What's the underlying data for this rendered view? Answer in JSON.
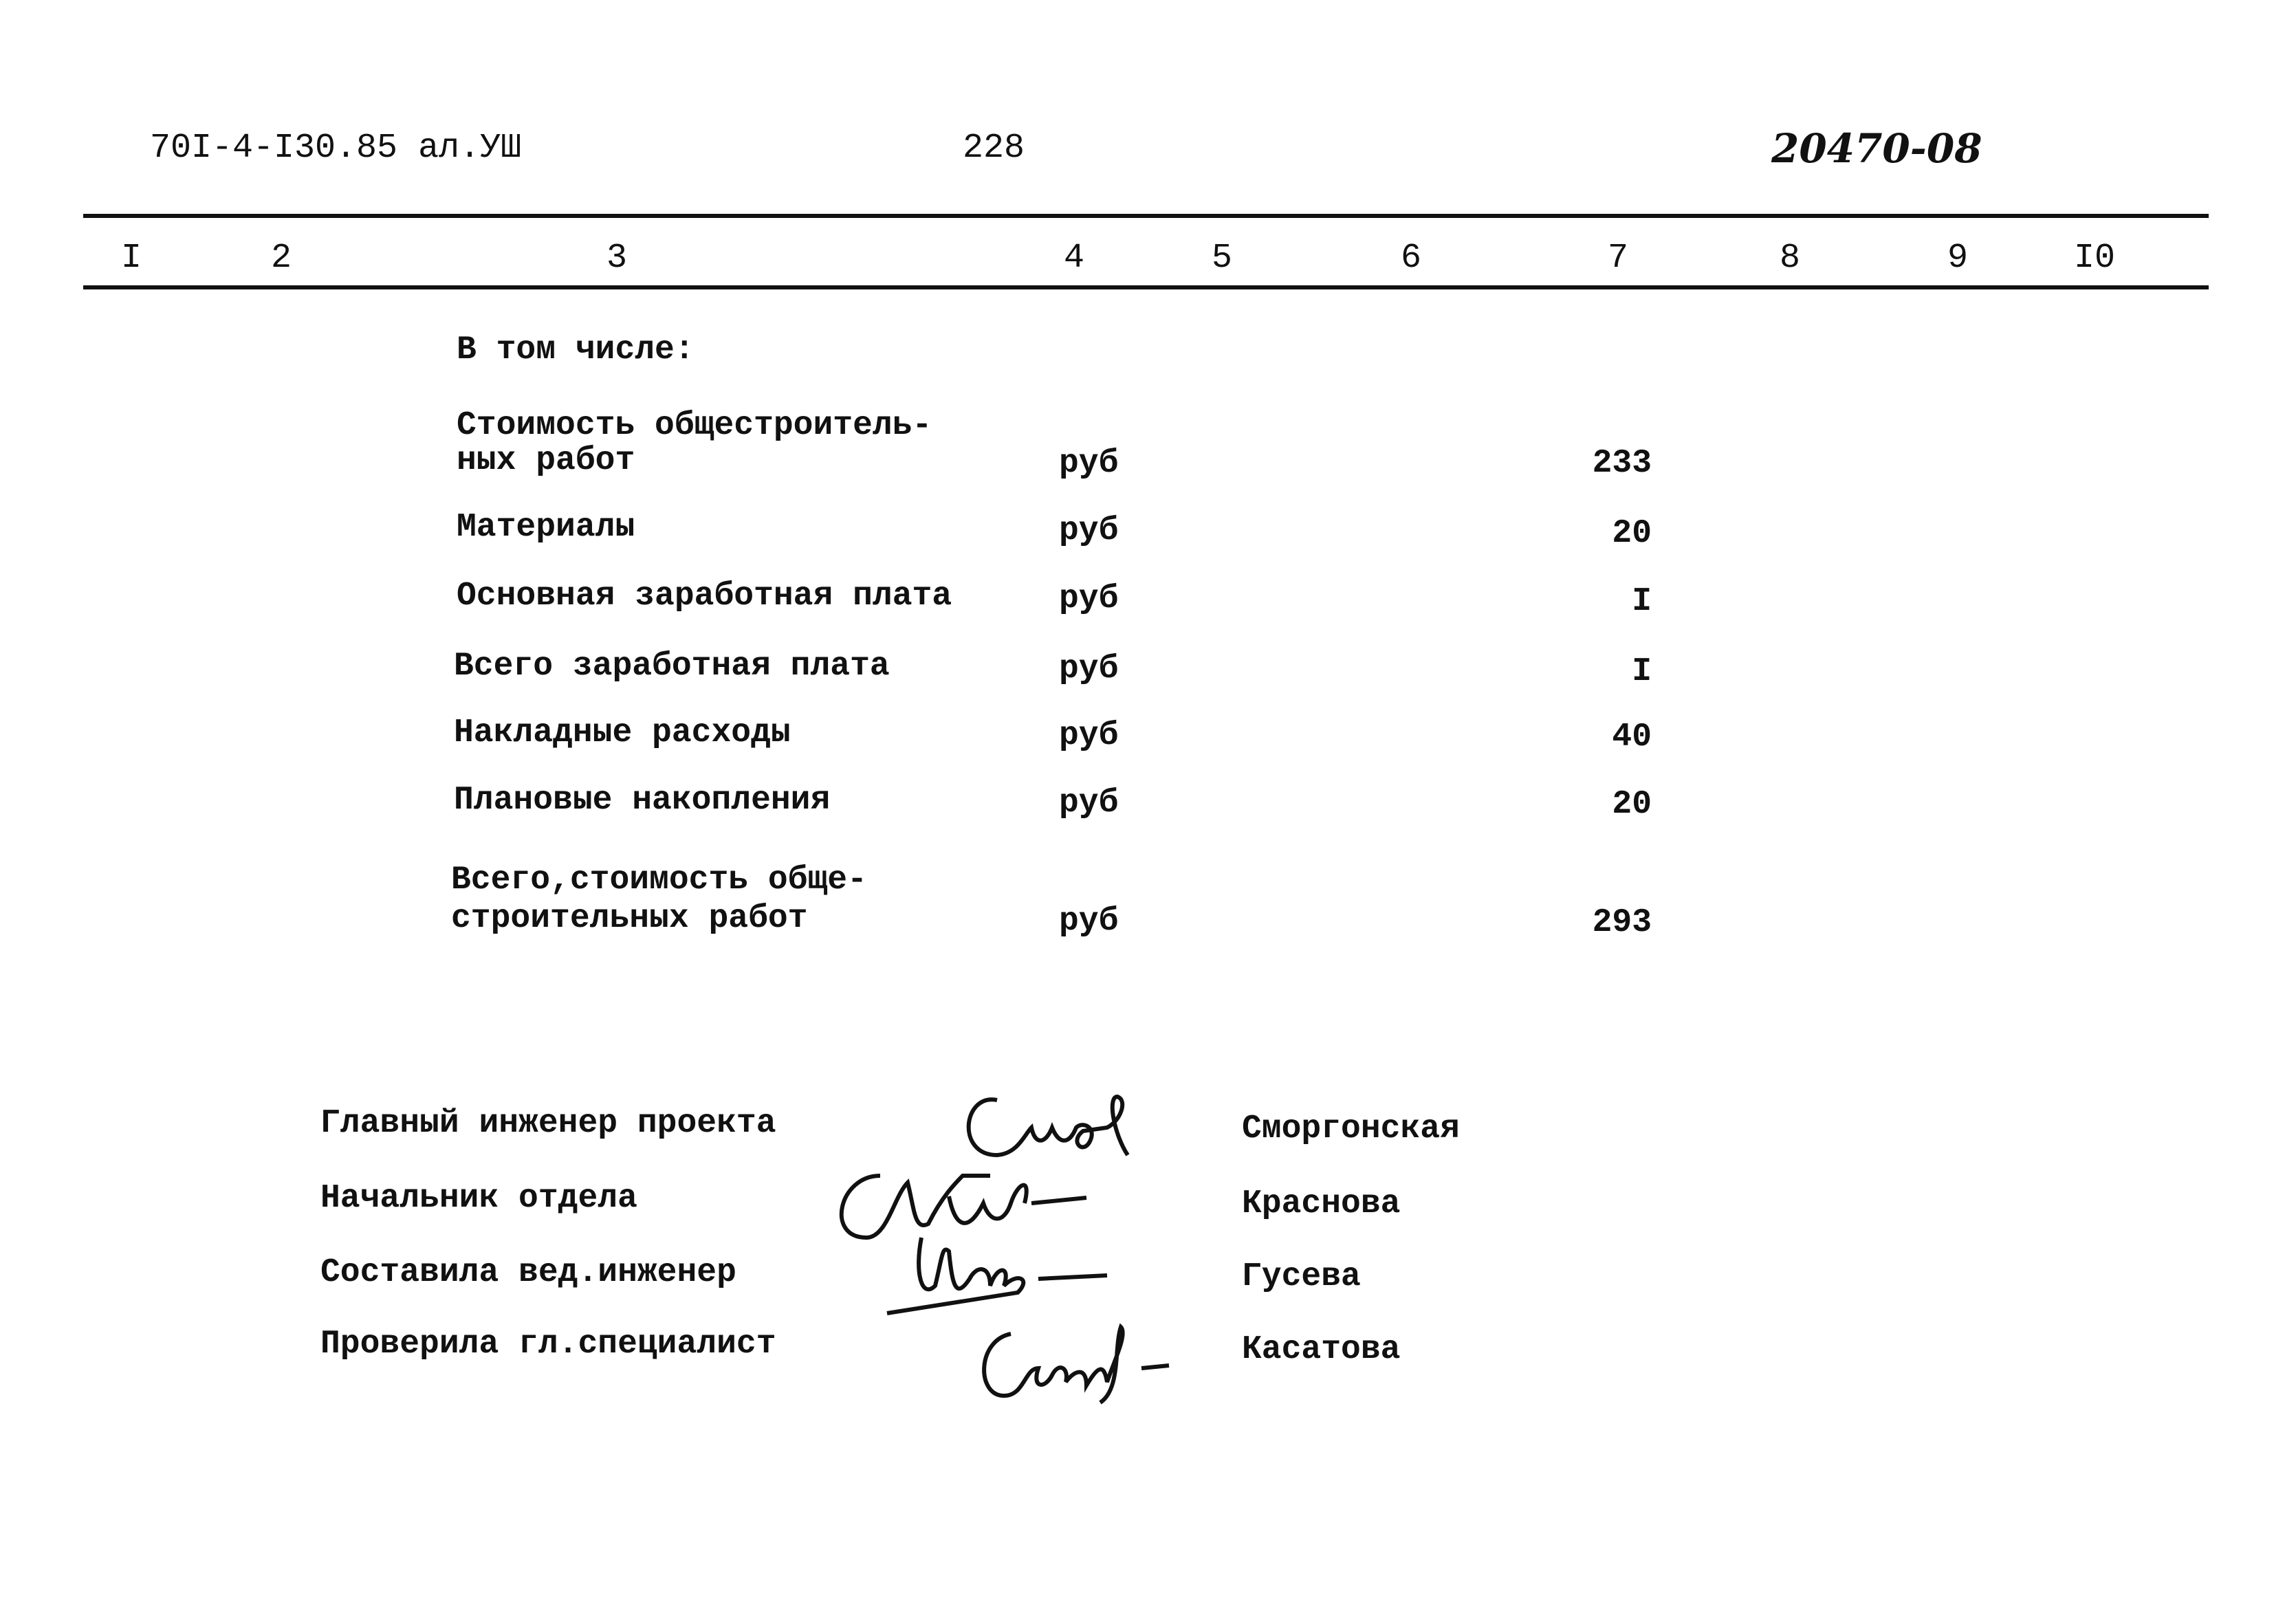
{
  "header": {
    "doc_code": "70I-4-I30.85 ал.УШ",
    "page_number": "228",
    "handwritten_number": "20470-08"
  },
  "columns": [
    "I",
    "2",
    "3",
    "4",
    "5",
    "6",
    "7",
    "8",
    "9",
    "I0"
  ],
  "section_title": "В том числе:",
  "rows": [
    {
      "label_line1": "Стоимость общестроитель-",
      "label_line2": "ных работ",
      "unit": "руб",
      "value": "233"
    },
    {
      "label_line1": "Материалы",
      "unit": "руб",
      "value": "20"
    },
    {
      "label_line1": "Основная заработная плата",
      "unit": "руб",
      "value": "I"
    },
    {
      "label_line1": "Всего заработная плата",
      "unit": "руб",
      "value": "I"
    },
    {
      "label_line1": "Накладные расходы",
      "unit": "руб",
      "value": "40"
    },
    {
      "label_line1": "Плановые накопления",
      "unit": "руб",
      "value": "20"
    },
    {
      "label_line1": "Всего,стоимость обще-",
      "label_line2": "строительных работ",
      "unit": "руб",
      "value": "293"
    }
  ],
  "signatures": [
    {
      "role": "Главный инженер проекта",
      "name": "Сморгонская"
    },
    {
      "role": "Начальник   отдела",
      "name": "Краснова"
    },
    {
      "role": "Составила вед.инженер",
      "name": "Гусева"
    },
    {
      "role": "Проверила гл.специалист",
      "name": "Касатова"
    }
  ]
}
